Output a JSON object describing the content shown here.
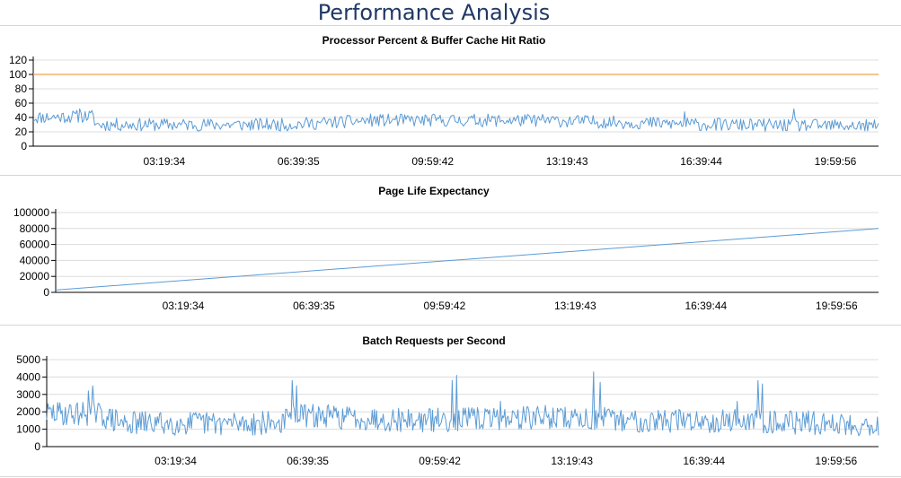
{
  "page": {
    "title": "Performance Analysis"
  },
  "colors": {
    "series": "#5b9bd5",
    "threshold": "#f4b169",
    "grid": "#dcdcdc",
    "axis": "#000000",
    "title": "#1f3864"
  },
  "chart_data": [
    {
      "type": "line",
      "title": "Processor Percent & Buffer Cache Hit Ratio",
      "x_ticks": [
        "03:19:34",
        "06:39:35",
        "09:59:42",
        "13:19:43",
        "16:39:44",
        "19:59:56"
      ],
      "y_ticks": [
        "0",
        "20",
        "40",
        "60",
        "80",
        "100",
        "120"
      ],
      "ylim": [
        0,
        120
      ],
      "grid": true,
      "series": [
        {
          "kind": "threshold",
          "color": "#f4b169",
          "values": [
            100,
            100
          ]
        },
        {
          "kind": "noise",
          "color": "#5b9bd5",
          "points": 620,
          "seed": 11,
          "baseline": [
            [
              0,
              40
            ],
            [
              0.07,
              42
            ],
            [
              0.075,
              30
            ],
            [
              0.3,
              30
            ],
            [
              0.4,
              36
            ],
            [
              0.6,
              36
            ],
            [
              0.8,
              30
            ],
            [
              1,
              28
            ]
          ],
          "amplitude": 9,
          "min": 14,
          "max": 55,
          "spikes": [
            [
              0.055,
              52
            ],
            [
              0.9,
              52
            ],
            [
              0.77,
              48
            ]
          ]
        }
      ]
    },
    {
      "type": "line",
      "title": "Page Life Expectancy",
      "x_ticks": [
        "03:19:34",
        "06:39:35",
        "09:59:42",
        "13:19:43",
        "16:39:44",
        "19:59:56"
      ],
      "y_ticks": [
        "0",
        "20000",
        "40000",
        "60000",
        "80000",
        "100000"
      ],
      "ylim": [
        0,
        100000
      ],
      "grid": true,
      "series": [
        {
          "kind": "line",
          "color": "#5b9bd5",
          "values": [
            3000,
            80000
          ]
        }
      ]
    },
    {
      "type": "line",
      "title": "Batch Requests per Second",
      "x_ticks": [
        "03:19:34",
        "06:39:35",
        "09:59:42",
        "13:19:43",
        "16:39:44",
        "19:59:56"
      ],
      "y_ticks": [
        "0",
        "1000",
        "2000",
        "3000",
        "4000",
        "5000"
      ],
      "ylim": [
        0,
        5000
      ],
      "grid": true,
      "series": [
        {
          "kind": "noise",
          "color": "#5b9bd5",
          "points": 760,
          "seed": 29,
          "baseline": [
            [
              0,
              1900
            ],
            [
              0.06,
              1900
            ],
            [
              0.09,
              1350
            ],
            [
              0.28,
              1350
            ],
            [
              0.3,
              1800
            ],
            [
              0.45,
              1500
            ],
            [
              0.6,
              1700
            ],
            [
              0.7,
              1500
            ],
            [
              0.85,
              1500
            ],
            [
              1,
              1200
            ]
          ],
          "amplitude": 700,
          "min": 100,
          "max": 4400,
          "spikes": [
            [
              0.055,
              3500
            ],
            [
              0.05,
              3200
            ],
            [
              0.295,
              3800
            ],
            [
              0.3,
              3500
            ],
            [
              0.493,
              4100
            ],
            [
              0.487,
              3800
            ],
            [
              0.658,
              4300
            ],
            [
              0.665,
              3700
            ],
            [
              0.855,
              3800
            ],
            [
              0.86,
              3600
            ],
            [
              0.545,
              2600
            ],
            [
              0.83,
              2600
            ]
          ]
        }
      ]
    }
  ]
}
